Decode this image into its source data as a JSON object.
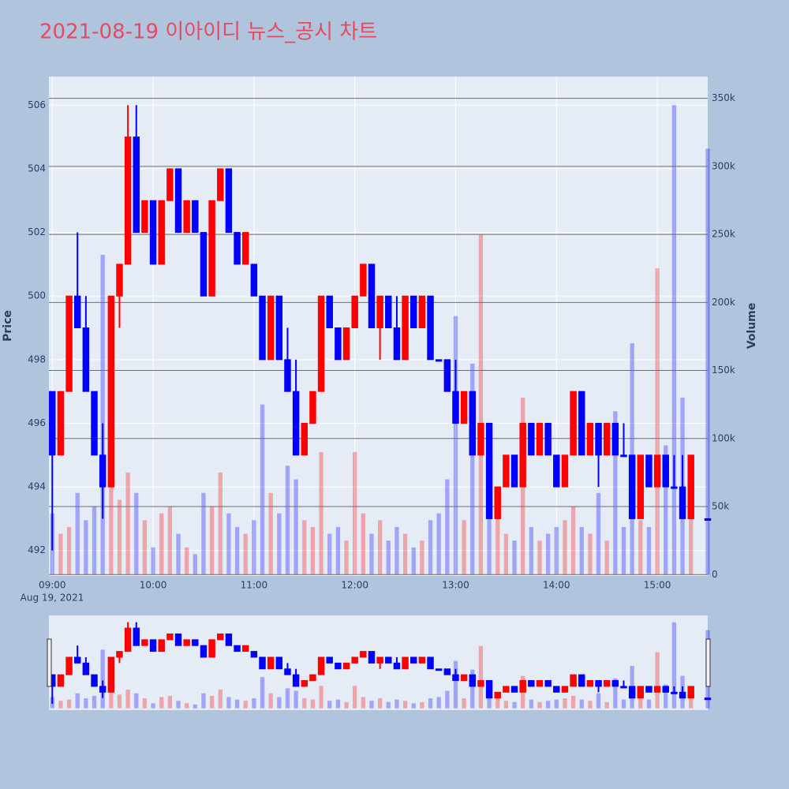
{
  "chart_data": {
    "type": "candlestick",
    "title": "2021-08-19 이아이디 뉴스_공시 차트",
    "title_color": "#e8495e",
    "y_title": "Price",
    "y2_title": "Volume",
    "increasing_color": "#ff0000",
    "decreasing_color": "#0000ff",
    "x": [
      "2021-08-19 09:00",
      "2021-08-19 09:05",
      "2021-08-19 09:10",
      "2021-08-19 09:15",
      "2021-08-19 09:20",
      "2021-08-19 09:25",
      "2021-08-19 09:30",
      "2021-08-19 09:35",
      "2021-08-19 09:40",
      "2021-08-19 09:45",
      "2021-08-19 09:50",
      "2021-08-19 09:55",
      "2021-08-19 10:00",
      "2021-08-19 10:05",
      "2021-08-19 10:10",
      "2021-08-19 10:15",
      "2021-08-19 10:20",
      "2021-08-19 10:25",
      "2021-08-19 10:30",
      "2021-08-19 10:35",
      "2021-08-19 10:40",
      "2021-08-19 10:45",
      "2021-08-19 10:50",
      "2021-08-19 10:55",
      "2021-08-19 11:00",
      "2021-08-19 11:05",
      "2021-08-19 11:10",
      "2021-08-19 11:15",
      "2021-08-19 11:20",
      "2021-08-19 11:25",
      "2021-08-19 11:30",
      "2021-08-19 11:35",
      "2021-08-19 11:40",
      "2021-08-19 11:45",
      "2021-08-19 11:50",
      "2021-08-19 11:55",
      "2021-08-19 12:00",
      "2021-08-19 12:05",
      "2021-08-19 12:10",
      "2021-08-19 12:15",
      "2021-08-19 12:20",
      "2021-08-19 12:25",
      "2021-08-19 12:30",
      "2021-08-19 12:35",
      "2021-08-19 12:40",
      "2021-08-19 12:45",
      "2021-08-19 12:50",
      "2021-08-19 12:55",
      "2021-08-19 13:00",
      "2021-08-19 13:05",
      "2021-08-19 13:10",
      "2021-08-19 13:15",
      "2021-08-19 13:20",
      "2021-08-19 13:25",
      "2021-08-19 13:30",
      "2021-08-19 13:35",
      "2021-08-19 13:40",
      "2021-08-19 13:45",
      "2021-08-19 13:50",
      "2021-08-19 13:55",
      "2021-08-19 14:00",
      "2021-08-19 14:05",
      "2021-08-19 14:10",
      "2021-08-19 14:15",
      "2021-08-19 14:20",
      "2021-08-19 14:25",
      "2021-08-19 14:30",
      "2021-08-19 14:35",
      "2021-08-19 14:40",
      "2021-08-19 14:45",
      "2021-08-19 14:50",
      "2021-08-19 14:55",
      "2021-08-19 15:00",
      "2021-08-19 15:05",
      "2021-08-19 15:10",
      "2021-08-19 15:15",
      "2021-08-19 15:20",
      "2021-08-19 15:30"
    ],
    "open": [
      497,
      495,
      497,
      500,
      499,
      497,
      495,
      494,
      500,
      501,
      505,
      502,
      503,
      501,
      503,
      504,
      502,
      503,
      502,
      500,
      503,
      504,
      502,
      501,
      501,
      500,
      498,
      500,
      498,
      497,
      495,
      496,
      497,
      500,
      499,
      498,
      499,
      500,
      501,
      499,
      500,
      499,
      498,
      500,
      499,
      500,
      498,
      498,
      497,
      496,
      497,
      495,
      496,
      493,
      494,
      495,
      494,
      496,
      495,
      496,
      495,
      494,
      495,
      497,
      495,
      496,
      495,
      496,
      495,
      495,
      493,
      495,
      494,
      495,
      494,
      494,
      493,
      493
    ],
    "high": [
      497,
      497,
      500,
      502,
      500,
      497,
      496,
      500,
      501,
      506,
      506,
      503,
      503,
      503,
      504,
      504,
      503,
      503,
      502,
      503,
      504,
      504,
      502,
      502,
      501,
      500,
      500,
      500,
      499,
      498,
      496,
      497,
      500,
      500,
      499,
      499,
      500,
      501,
      501,
      500,
      500,
      500,
      500,
      500,
      500,
      500,
      498,
      498,
      498,
      497,
      497,
      496,
      496,
      494,
      495,
      495,
      496,
      496,
      496,
      496,
      495,
      495,
      497,
      497,
      496,
      496,
      496,
      496,
      496,
      495,
      495,
      495,
      495,
      495,
      495,
      495,
      495,
      493
    ],
    "low": [
      492,
      495,
      497,
      499,
      497,
      495,
      493,
      494,
      499,
      501,
      502,
      502,
      501,
      501,
      503,
      502,
      502,
      502,
      500,
      500,
      503,
      502,
      501,
      501,
      500,
      498,
      498,
      498,
      497,
      495,
      495,
      496,
      497,
      499,
      498,
      498,
      499,
      500,
      499,
      498,
      499,
      498,
      498,
      499,
      499,
      498,
      498,
      497,
      496,
      496,
      495,
      495,
      493,
      493,
      494,
      494,
      494,
      495,
      495,
      495,
      494,
      494,
      495,
      495,
      495,
      494,
      495,
      495,
      495,
      493,
      493,
      494,
      494,
      494,
      494,
      493,
      493,
      493
    ],
    "close": [
      495,
      497,
      500,
      499,
      497,
      495,
      494,
      500,
      501,
      505,
      502,
      503,
      501,
      503,
      504,
      502,
      503,
      502,
      500,
      503,
      504,
      502,
      501,
      502,
      500,
      498,
      500,
      498,
      497,
      495,
      496,
      497,
      500,
      499,
      498,
      499,
      500,
      501,
      499,
      500,
      499,
      498,
      500,
      499,
      500,
      498,
      498,
      497,
      496,
      497,
      495,
      496,
      493,
      494,
      495,
      494,
      496,
      495,
      496,
      495,
      494,
      495,
      497,
      495,
      496,
      495,
      496,
      495,
      495,
      493,
      495,
      494,
      495,
      494,
      494,
      493,
      495,
      493
    ],
    "volume": [
      45000,
      30000,
      35000,
      60000,
      40000,
      50000,
      235000,
      90000,
      55000,
      75000,
      60000,
      40000,
      20000,
      45000,
      50000,
      30000,
      20000,
      15000,
      60000,
      50000,
      75000,
      45000,
      35000,
      30000,
      40000,
      125000,
      60000,
      45000,
      80000,
      70000,
      40000,
      35000,
      90000,
      30000,
      35000,
      25000,
      90000,
      45000,
      30000,
      40000,
      25000,
      35000,
      30000,
      20000,
      25000,
      40000,
      45000,
      70000,
      190000,
      40000,
      155000,
      250000,
      50000,
      45000,
      30000,
      25000,
      130000,
      35000,
      25000,
      30000,
      35000,
      40000,
      50000,
      35000,
      30000,
      60000,
      25000,
      120000,
      35000,
      170000,
      40000,
      35000,
      225000,
      95000,
      345000,
      130000,
      50000,
      313000
    ],
    "xlim": [
      "2021-08-19 08:58",
      "2021-08-19 15:30"
    ],
    "xticks": [
      {
        "value": "2021-08-19 09:00",
        "label": "09:00"
      },
      {
        "value": "2021-08-19 10:00",
        "label": "10:00"
      },
      {
        "value": "2021-08-19 11:00",
        "label": "11:00"
      },
      {
        "value": "2021-08-19 12:00",
        "label": "12:00"
      },
      {
        "value": "2021-08-19 13:00",
        "label": "13:00"
      },
      {
        "value": "2021-08-19 14:00",
        "label": "14:00"
      },
      {
        "value": "2021-08-19 15:00",
        "label": "15:00"
      }
    ],
    "x_date_label": "Aug 19, 2021",
    "ylim": [
      491.2,
      506.9
    ],
    "yticks": [
      492,
      494,
      496,
      498,
      500,
      502,
      504,
      506
    ],
    "y2lim": [
      -1000,
      366000
    ],
    "y2ticks": [
      0,
      {
        "value": 50000,
        "label": "50k"
      },
      {
        "value": 100000,
        "label": "100k"
      },
      {
        "value": 150000,
        "label": "150k"
      },
      {
        "value": 200000,
        "label": "200k"
      },
      {
        "value": 250000,
        "label": "250k"
      },
      {
        "value": 300000,
        "label": "300k"
      },
      {
        "value": 350000,
        "label": "350k"
      }
    ],
    "grid": true,
    "rangeslider": true
  }
}
